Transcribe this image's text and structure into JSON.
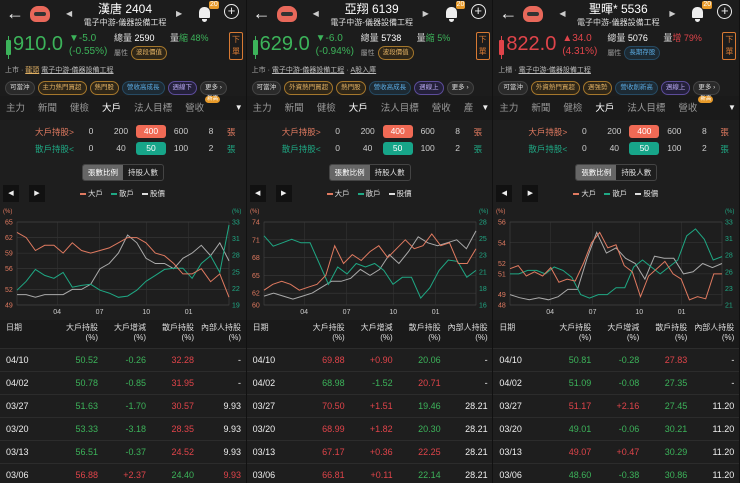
{
  "colors": {
    "up": "#e0444a",
    "down": "#3cb35a",
    "big_holder": "#e07a60",
    "retail": "#1fa884",
    "price_line": "#aaaaaa",
    "accent_orange": "#e8685a",
    "accent_teal": "#17a589"
  },
  "panels": [
    {
      "title": "漢唐 2404",
      "industry": "電子中游-儀器設備工程",
      "bell_count": "20",
      "direction": "down",
      "price": "910.0",
      "change": "▼-5.0",
      "change_pct": "(-0.55%)",
      "volume_label": "總量",
      "volume": "2590",
      "vol_ratio_label": "量",
      "vol_ratio_word": "縮",
      "vol_ratio": "48%",
      "vol_dir": "down",
      "attr_label": "屬性",
      "attr_tag": "波段價值",
      "attr_style": "gold",
      "order_button": "下單",
      "info": [
        "上市",
        "·",
        "龍頭",
        "電子中游-儀器設備工程"
      ],
      "tags": [
        {
          "label": "可當沖",
          "style": ""
        },
        {
          "label": "主力熱門買超",
          "style": "gold"
        },
        {
          "label": "熱門股",
          "style": "gold"
        },
        {
          "label": "營收高成長",
          "style": "blue"
        },
        {
          "label": "週線下",
          "style": "purple"
        },
        {
          "label": "更多 ›",
          "style": ""
        }
      ],
      "tabs": [
        "主力",
        "新聞",
        "健檢",
        "大戶",
        "法人目標",
        "營收"
      ],
      "active_tab": "大戶",
      "new_badge": "新高",
      "big_holder": {
        "label": "大戶持股>",
        "options": [
          "0",
          "200",
          "400",
          "600",
          "8"
        ],
        "selected": "400",
        "unit": "張"
      },
      "retail": {
        "label": "散戶持股<",
        "options": [
          "0",
          "40",
          "50",
          "100",
          "2"
        ],
        "selected": "50",
        "unit": "張"
      },
      "toggle": [
        "張數比例",
        "持股人數"
      ],
      "toggle_active": "張數比例",
      "legend": [
        "大戶",
        "散戶",
        "股價"
      ],
      "chart_data": {
        "type": "line",
        "x_ticks": [
          "04",
          "07",
          "10",
          "01"
        ],
        "left_unit": "(%)",
        "right_unit": "(%)",
        "left_ticks": [
          49,
          52,
          56,
          59,
          62,
          65
        ],
        "right_ticks": [
          19,
          22,
          25,
          28,
          31,
          33
        ],
        "ylim_left": [
          49,
          65
        ],
        "ylim_right": [
          19,
          33
        ],
        "grid": true,
        "series": [
          {
            "name": "大戶",
            "axis": "left",
            "values": [
              63,
              62,
              59.5,
              60.5,
              60.5,
              59,
              61,
              59.5,
              59,
              59.5,
              60,
              61,
              62,
              62,
              61,
              59,
              58.5,
              57,
              55,
              55,
              56,
              53.5,
              55,
              50.5
            ]
          },
          {
            "name": "散戶",
            "axis": "right",
            "values": [
              21.5,
              23,
              25,
              24,
              23.5,
              24.5,
              22,
              22.3,
              22.5,
              21.5,
              21,
              20.3,
              20.5,
              21.5,
              23,
              24,
              25,
              25.2,
              25.2,
              23.5,
              26,
              27.3,
              24.5,
              32.5
            ]
          },
          {
            "name": "股價",
            "axis": "left",
            "values": [
              51,
              51,
              50.5,
              51,
              51,
              51,
              52,
              52,
              53,
              56,
              57,
              59,
              62.5,
              61,
              58,
              57,
              57,
              56,
              58,
              59,
              60.5,
              58.5,
              61,
              57.5
            ]
          }
        ]
      },
      "table": {
        "headers": [
          [
            "日期",
            ""
          ],
          [
            "大戶持股",
            "(%)"
          ],
          [
            "大戶增減",
            "(%)"
          ],
          [
            "散戶持股",
            "(%)"
          ],
          [
            "內部人持股",
            "(%)"
          ]
        ],
        "rows": [
          {
            "cells": [
              "04/10",
              "50.52",
              "-0.26",
              "32.28",
              "-"
            ],
            "colors": [
              "white",
              "green",
              "green",
              "red",
              "white"
            ]
          },
          {
            "cells": [
              "04/02",
              "50.78",
              "-0.85",
              "31.95",
              "-"
            ],
            "colors": [
              "white",
              "green",
              "green",
              "red",
              "white"
            ]
          },
          {
            "cells": [
              "03/27",
              "51.63",
              "-1.70",
              "30.57",
              "9.93"
            ],
            "colors": [
              "white",
              "green",
              "green",
              "red",
              "white"
            ]
          },
          {
            "cells": [
              "03/20",
              "53.33",
              "-3.18",
              "28.35",
              "9.93"
            ],
            "colors": [
              "white",
              "green",
              "green",
              "red",
              "white"
            ]
          },
          {
            "cells": [
              "03/13",
              "56.51",
              "-0.37",
              "24.52",
              "9.93"
            ],
            "colors": [
              "white",
              "green",
              "green",
              "red",
              "white"
            ]
          },
          {
            "cells": [
              "03/06",
              "56.88",
              "+2.37",
              "24.40",
              "9.93"
            ],
            "colors": [
              "white",
              "red",
              "red",
              "green",
              "red"
            ]
          }
        ]
      }
    },
    {
      "title": "亞翔 6139",
      "industry": "電子中游-儀器設備工程",
      "bell_count": "20",
      "direction": "down",
      "price": "629.0",
      "change": "▼-6.0",
      "change_pct": "(-0.94%)",
      "volume_label": "總量",
      "volume": "5738",
      "vol_ratio_label": "量",
      "vol_ratio_word": "縮",
      "vol_ratio": "5%",
      "vol_dir": "down",
      "attr_label": "屬性",
      "attr_tag": "波段價值",
      "attr_style": "gold",
      "order_button": "下單",
      "info": [
        "上市",
        "·",
        "電子中游-儀器設備工程",
        "·",
        "A股入庫"
      ],
      "tags": [
        {
          "label": "可當沖",
          "style": ""
        },
        {
          "label": "外資熱門買超",
          "style": "gold"
        },
        {
          "label": "熱門股",
          "style": "gold"
        },
        {
          "label": "營收高成長",
          "style": "blue"
        },
        {
          "label": "週線上",
          "style": "purple"
        },
        {
          "label": "更多 ›",
          "style": ""
        }
      ],
      "tabs": [
        "主力",
        "新聞",
        "健檢",
        "大戶",
        "法人目標",
        "營收",
        "產"
      ],
      "active_tab": "大戶",
      "new_badge": "",
      "big_holder": {
        "label": "大戶持股>",
        "options": [
          "0",
          "200",
          "400",
          "600",
          "8"
        ],
        "selected": "400",
        "unit": "張"
      },
      "retail": {
        "label": "散戶持股<",
        "options": [
          "0",
          "40",
          "50",
          "100",
          "2"
        ],
        "selected": "50",
        "unit": "張"
      },
      "toggle": [
        "張數比例",
        "持股人數"
      ],
      "toggle_active": "張數比例",
      "legend": [
        "大戶",
        "散戶",
        "股價"
      ],
      "chart_data": {
        "type": "line",
        "x_ticks": [
          "04",
          "07",
          "10",
          "01"
        ],
        "left_unit": "(%)",
        "right_unit": "(%)",
        "left_ticks": [
          60,
          62,
          65,
          68,
          71,
          74
        ],
        "right_ticks": [
          16,
          18,
          21,
          23,
          25,
          28
        ],
        "ylim_left": [
          60,
          74
        ],
        "ylim_right": [
          16,
          28
        ],
        "grid": true,
        "series": [
          {
            "name": "大戶",
            "axis": "left",
            "values": [
              62.5,
              63.5,
              64,
              63.5,
              62.5,
              63,
              63.5,
              65,
              70,
              67,
              68.5,
              67.5,
              69,
              70,
              68,
              69.5,
              71,
              69.5,
              70,
              72,
              70,
              70.5,
              67,
              67,
              69.5
            ]
          },
          {
            "name": "散戶",
            "axis": "right",
            "values": [
              26,
              24.5,
              25,
              25.5,
              25,
              25,
              22,
              19,
              21.5,
              20.5,
              22,
              21.5,
              22,
              21,
              19,
              20,
              20,
              17,
              18.5,
              21,
              22.5,
              22.3,
              20,
              21
            ]
          },
          {
            "name": "股價",
            "axis": "left",
            "values": [
              61.5,
              62,
              61.5,
              61,
              61.5,
              62,
              63,
              64,
              64,
              64.5,
              66,
              65,
              66,
              68.5,
              67,
              69,
              71.5,
              70.5,
              70,
              70.5,
              71,
              69.5,
              72.5
            ]
          }
        ]
      },
      "table": {
        "headers": [
          [
            "日期",
            ""
          ],
          [
            "大戶持股",
            "(%)"
          ],
          [
            "大戶增減",
            "(%)"
          ],
          [
            "散戶持股",
            "(%)"
          ],
          [
            "內部人持股",
            "(%)"
          ]
        ],
        "rows": [
          {
            "cells": [
              "04/10",
              "69.88",
              "+0.90",
              "20.06",
              "-"
            ],
            "colors": [
              "white",
              "red",
              "red",
              "green",
              "white"
            ]
          },
          {
            "cells": [
              "04/02",
              "68.98",
              "-1.52",
              "20.71",
              "-"
            ],
            "colors": [
              "white",
              "green",
              "green",
              "red",
              "white"
            ]
          },
          {
            "cells": [
              "03/27",
              "70.50",
              "+1.51",
              "19.46",
              "28.21"
            ],
            "colors": [
              "white",
              "red",
              "red",
              "green",
              "white"
            ]
          },
          {
            "cells": [
              "03/20",
              "68.99",
              "+1.82",
              "20.30",
              "28.21"
            ],
            "colors": [
              "white",
              "red",
              "red",
              "green",
              "white"
            ]
          },
          {
            "cells": [
              "03/13",
              "67.17",
              "+0.36",
              "22.25",
              "28.21"
            ],
            "colors": [
              "white",
              "red",
              "red",
              "red",
              "white"
            ]
          },
          {
            "cells": [
              "03/06",
              "66.81",
              "+0.11",
              "22.14",
              "28.21"
            ],
            "colors": [
              "white",
              "red",
              "red",
              "green",
              "white"
            ]
          }
        ]
      }
    },
    {
      "title": "聖暉* 5536",
      "industry": "電子中游-儀器設備工程",
      "bell_count": "20",
      "direction": "up",
      "price": "822.0",
      "change": "▲34.0",
      "change_pct": "(4.31%)",
      "volume_label": "總量",
      "volume": "5076",
      "vol_ratio_label": "量",
      "vol_ratio_word": "增",
      "vol_ratio": "79%",
      "vol_dir": "up",
      "attr_label": "屬性",
      "attr_tag": "長期存股",
      "attr_style": "blue",
      "order_button": "下單",
      "info": [
        "上櫃",
        "·",
        "電子中游-儀器設備工程"
      ],
      "tags": [
        {
          "label": "可當沖",
          "style": ""
        },
        {
          "label": "外資熱門買超",
          "style": "gold"
        },
        {
          "label": "週強勢",
          "style": "gold"
        },
        {
          "label": "營收創新高",
          "style": "blue"
        },
        {
          "label": "週線上",
          "style": "purple"
        },
        {
          "label": "更多 ›",
          "style": ""
        }
      ],
      "tabs": [
        "主力",
        "新聞",
        "健檢",
        "大戶",
        "法人目標",
        "營收"
      ],
      "active_tab": "大戶",
      "new_badge": "新高",
      "big_holder": {
        "label": "大戶持股>",
        "options": [
          "0",
          "200",
          "400",
          "600",
          "8"
        ],
        "selected": "400",
        "unit": "張"
      },
      "retail": {
        "label": "散戶持股<",
        "options": [
          "0",
          "40",
          "50",
          "100",
          "2"
        ],
        "selected": "50",
        "unit": "張"
      },
      "toggle": [
        "張數比例",
        "持股人數"
      ],
      "toggle_active": "張數比例",
      "legend": [
        "大戶",
        "散戶",
        "股價"
      ],
      "chart_data": {
        "type": "line",
        "x_ticks": [
          "04",
          "07",
          "10",
          "01"
        ],
        "left_unit": "(%)",
        "right_unit": "(%)",
        "left_ticks": [
          48,
          49,
          51,
          52,
          54,
          56
        ],
        "right_ticks": [
          21,
          23,
          26,
          28,
          31,
          33
        ],
        "ylim_left": [
          48,
          56
        ],
        "ylim_right": [
          21,
          33
        ],
        "grid": true,
        "series": [
          {
            "name": "大戶",
            "axis": "left",
            "values": [
              51.5,
              51.8,
              50.8,
              51.2,
              50.8,
              51.6,
              50.2,
              50.5,
              50.3,
              52,
              54,
              55,
              53.5,
              53.8,
              51.8,
              51.2,
              48.8,
              50.8,
              51.5,
              52.2,
              51,
              50.5,
              48.5,
              48.8,
              48.6,
              51,
              51
            ]
          },
          {
            "name": "散戶",
            "axis": "right",
            "values": [
              25.5,
              25.5,
              26,
              26,
              25.5,
              26.5,
              26,
              25,
              22.5,
              22,
              22.5,
              22.5,
              23.5,
              23.5,
              26.5,
              27.5,
              26.5,
              25.5,
              26.5,
              27.5,
              31,
              32,
              30.5,
              27.5,
              28
            ]
          },
          {
            "name": "股價",
            "axis": "left",
            "values": [
              49,
              48.7,
              48.5,
              48.7,
              48.5,
              48.8,
              49.5,
              49.5,
              52.5,
              55,
              53,
              53.5,
              52.5,
              52,
              50.5,
              52.7,
              52.5,
              52.5,
              51,
              51.2,
              52,
              51.6,
              52
            ]
          }
        ]
      },
      "table": {
        "headers": [
          [
            "日期",
            ""
          ],
          [
            "大戶持股",
            "(%)"
          ],
          [
            "大戶增減",
            "(%)"
          ],
          [
            "散戶持股",
            "(%)"
          ],
          [
            "內部人持股",
            "(%)"
          ]
        ],
        "rows": [
          {
            "cells": [
              "04/10",
              "50.81",
              "-0.28",
              "27.83",
              "-"
            ],
            "colors": [
              "white",
              "green",
              "green",
              "red",
              "white"
            ]
          },
          {
            "cells": [
              "04/02",
              "51.09",
              "-0.08",
              "27.35",
              "-"
            ],
            "colors": [
              "white",
              "green",
              "green",
              "green",
              "white"
            ]
          },
          {
            "cells": [
              "03/27",
              "51.17",
              "+2.16",
              "27.45",
              "11.20"
            ],
            "colors": [
              "white",
              "red",
              "red",
              "green",
              "white"
            ]
          },
          {
            "cells": [
              "03/20",
              "49.01",
              "-0.06",
              "30.21",
              "11.20"
            ],
            "colors": [
              "white",
              "green",
              "green",
              "green",
              "white"
            ]
          },
          {
            "cells": [
              "03/13",
              "49.07",
              "+0.47",
              "30.29",
              "11.20"
            ],
            "colors": [
              "white",
              "red",
              "red",
              "green",
              "white"
            ]
          },
          {
            "cells": [
              "03/06",
              "48.60",
              "-0.38",
              "30.86",
              "11.20"
            ],
            "colors": [
              "white",
              "green",
              "green",
              "green",
              "white"
            ]
          }
        ]
      }
    }
  ]
}
